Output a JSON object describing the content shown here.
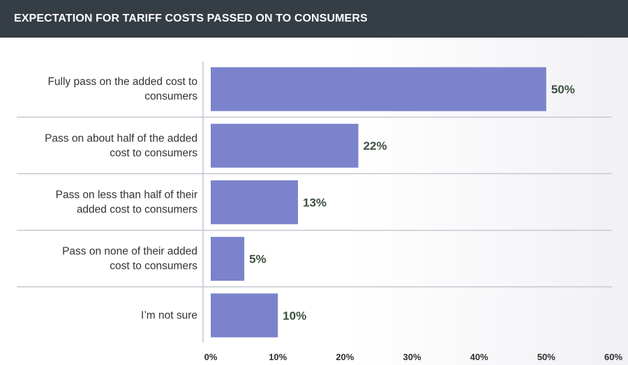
{
  "header": {
    "title": "EXPECTATION FOR TARIFF COSTS PASSED ON TO CONSUMERS"
  },
  "chart_data": {
    "type": "bar",
    "orientation": "horizontal",
    "title": "EXPECTATION FOR TARIFF COSTS PASSED ON TO CONSUMERS",
    "categories": [
      [
        "Fully pass on the added cost to",
        "consumers"
      ],
      [
        "Pass on about half of the added",
        "cost to consumers"
      ],
      [
        "Pass on less than half of their",
        "added cost to consumers"
      ],
      [
        "Pass on none of their added",
        "cost to consumers"
      ],
      [
        "I’m not sure"
      ]
    ],
    "values": [
      50,
      22,
      13,
      5,
      10
    ],
    "value_labels": [
      "50%",
      "22%",
      "13%",
      "5%",
      "10%"
    ],
    "xlim": [
      0,
      60
    ],
    "ticks": [
      0,
      10,
      20,
      30,
      40,
      50,
      60
    ],
    "tick_labels": [
      "0%",
      "10%",
      "20%",
      "30%",
      "40%",
      "50%",
      "60%"
    ],
    "xlabel": "",
    "ylabel": "",
    "colors": {
      "bar": "#7b83cc",
      "value_label": "#3e5040",
      "gridline": "#c3cad1",
      "header": "#353d45"
    }
  }
}
